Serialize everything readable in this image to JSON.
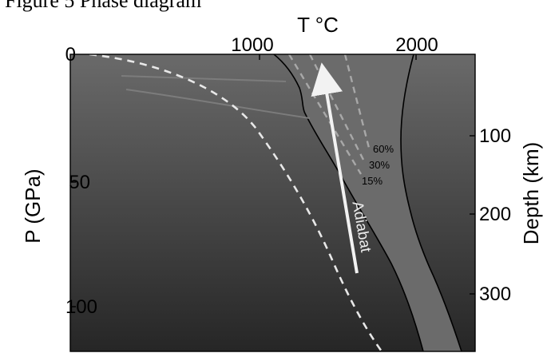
{
  "header_fragment": "Figure 5 Phase diagram",
  "axes": {
    "top_label": "T °C",
    "left_label": "P (GPa)",
    "right_label": "Depth (km)",
    "top_ticks": [
      "1000",
      "2000"
    ],
    "left_ticks": [
      "0",
      "50",
      "100"
    ],
    "right_ticks": [
      "100",
      "200",
      "300"
    ]
  },
  "curves": {
    "melt_percent_labels": [
      "60%",
      "30%",
      "15%"
    ],
    "adiabat_label": "Adiabat"
  },
  "colors": {
    "plot_top": "#6a6a6a",
    "plot_bottom": "#262626",
    "melt_band": "#6b6b6b",
    "dashed": "#e8e8e8",
    "percent_dashed": "#a8a8a8",
    "arrow": "#f2f2f2"
  }
}
